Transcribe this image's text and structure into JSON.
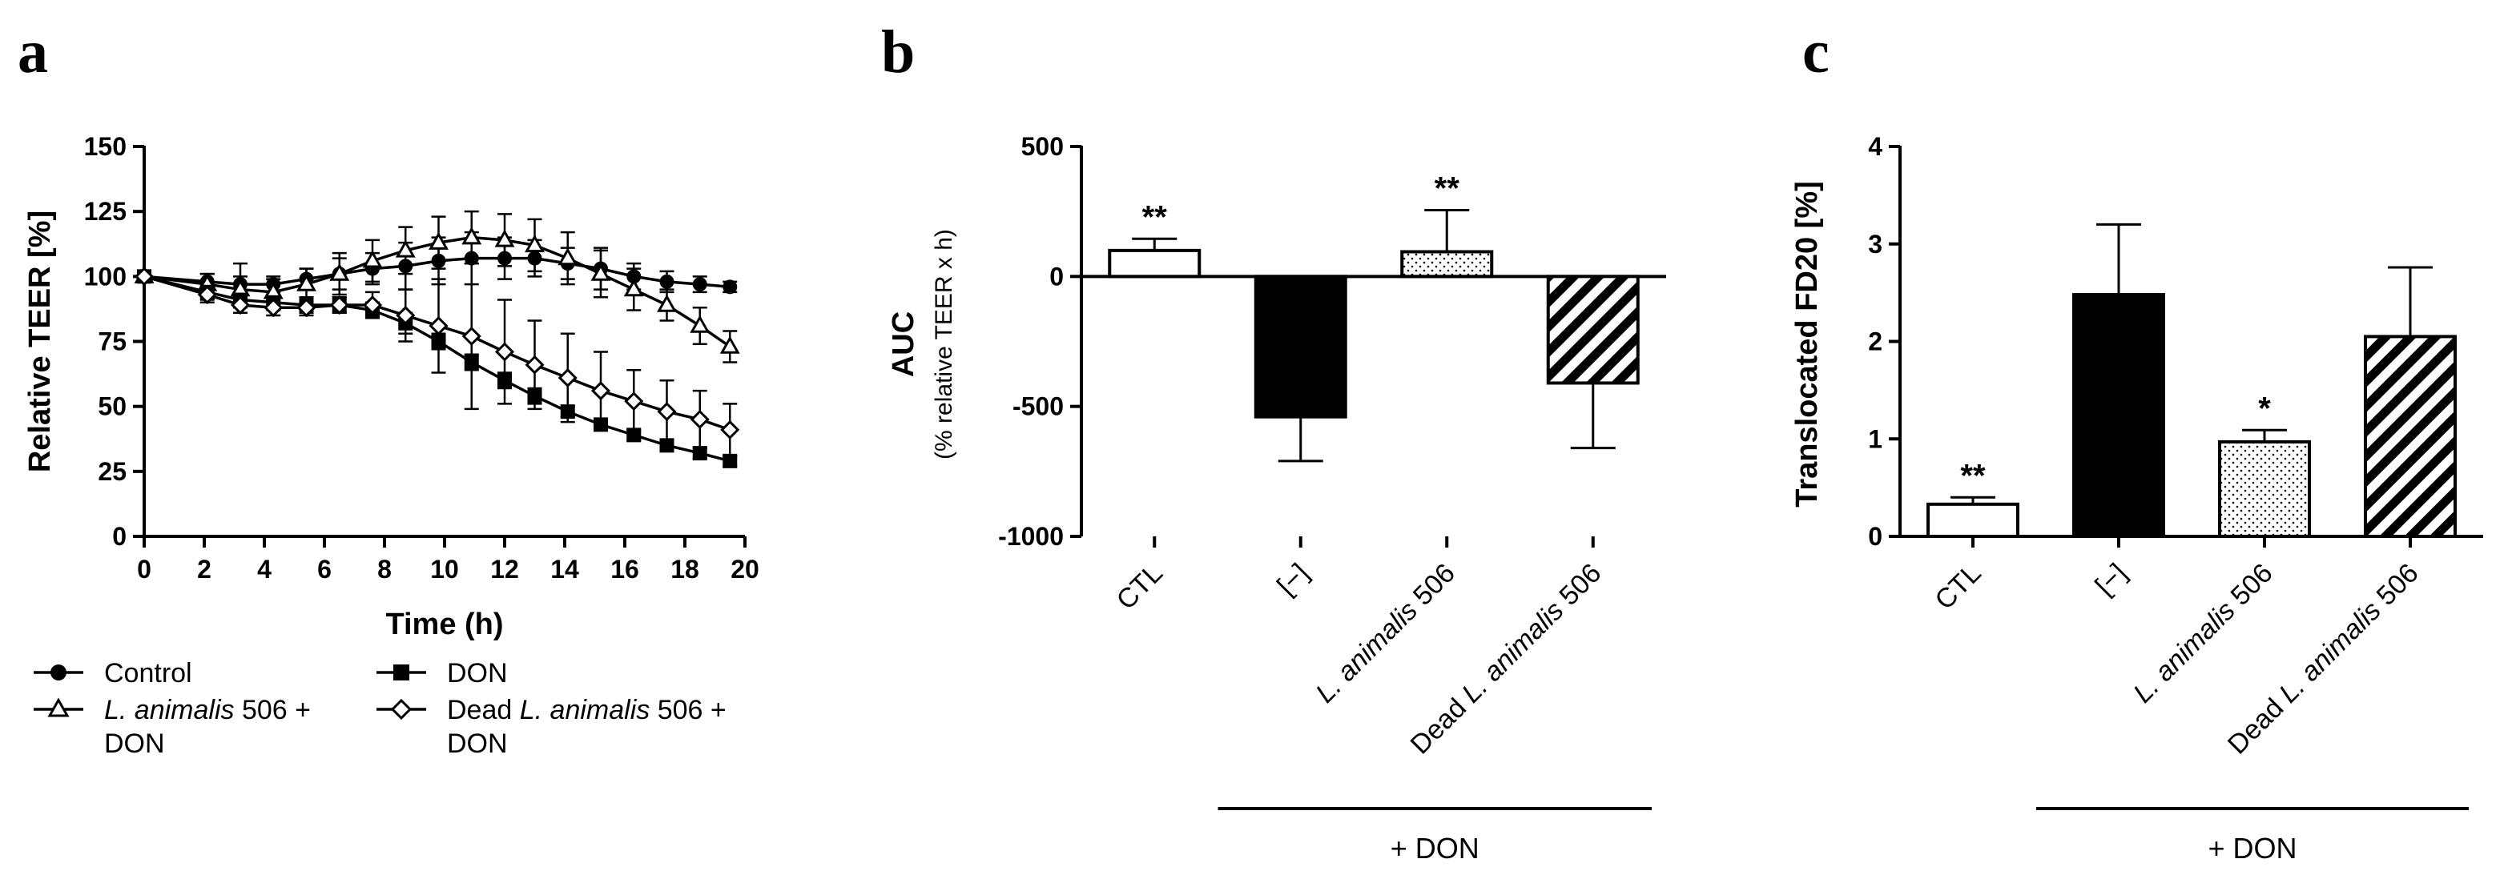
{
  "panels": {
    "a": "a",
    "b": "b",
    "c": "c"
  },
  "chart_data": [
    {
      "type": "line",
      "panel": "a",
      "title": "",
      "xlabel": "Time (h)",
      "ylabel": "Relative TEER [%]",
      "xlim": [
        0,
        20
      ],
      "ylim": [
        0,
        150
      ],
      "x_ticks": [
        "0",
        "2",
        "4",
        "6",
        "8",
        "10",
        "12",
        "14",
        "16",
        "18",
        "20"
      ],
      "y_ticks": [
        "0",
        "25",
        "50",
        "75",
        "100",
        "125",
        "150"
      ],
      "legend_position": "bottom",
      "series": [
        {
          "name": "Control",
          "marker": "filled-circle",
          "x": [
            0,
            2.1,
            3.2,
            4.3,
            5.4,
            6.5,
            7.6,
            8.7,
            9.8,
            10.9,
            12.0,
            13.0,
            14.1,
            15.2,
            16.3,
            17.4,
            18.5,
            19.5
          ],
          "y": [
            100,
            98,
            97,
            97,
            99,
            101,
            103,
            104,
            106,
            107,
            107,
            107,
            105,
            103,
            100,
            98,
            97,
            96
          ],
          "err": [
            0,
            3,
            8,
            3,
            4,
            6,
            6,
            9,
            9,
            10,
            8,
            7,
            6,
            8,
            5,
            4,
            3,
            2
          ]
        },
        {
          "name": "L. animalis 506 + DON",
          "marker": "open-triangle",
          "x": [
            0,
            2.1,
            3.2,
            4.3,
            5.4,
            6.5,
            7.6,
            8.7,
            9.8,
            10.9,
            12.0,
            13.0,
            14.1,
            15.2,
            16.3,
            17.4,
            18.5,
            19.5
          ],
          "y": [
            100,
            97,
            95,
            94,
            97,
            101,
            106,
            110,
            113,
            115,
            114,
            112,
            107,
            101,
            95,
            89,
            81,
            73
          ],
          "err": [
            0,
            4,
            5,
            5,
            6,
            8,
            8,
            9,
            10,
            10,
            10,
            10,
            10,
            9,
            8,
            6,
            7,
            6
          ]
        },
        {
          "name": "DON",
          "marker": "filled-square",
          "x": [
            0,
            2.1,
            3.2,
            4.3,
            5.4,
            6.5,
            7.6,
            8.7,
            9.8,
            10.9,
            12.0,
            13.0,
            14.1,
            15.2,
            16.3,
            17.4,
            18.5,
            19.5
          ],
          "y": [
            100,
            94,
            91,
            90,
            89,
            89,
            87,
            82,
            75,
            67,
            60,
            54,
            48,
            43,
            39,
            35,
            32,
            29
          ],
          "err": [
            0,
            3,
            3,
            3,
            3,
            3,
            3,
            4,
            3,
            3,
            3,
            3,
            2,
            2,
            2,
            2,
            2,
            2
          ]
        },
        {
          "name": "Dead L. animalis 506 + DON",
          "marker": "open-diamond",
          "x": [
            0,
            2.1,
            3.2,
            4.3,
            5.4,
            6.5,
            7.6,
            8.7,
            9.8,
            10.9,
            12.0,
            13.0,
            14.1,
            15.2,
            16.3,
            17.4,
            18.5,
            19.5
          ],
          "y": [
            100,
            93,
            89,
            88,
            88,
            89,
            89,
            85,
            81,
            77,
            71,
            66,
            61,
            56,
            52,
            48,
            45,
            41
          ],
          "err": [
            0,
            3,
            3,
            3,
            3,
            3,
            5,
            10,
            18,
            28,
            20,
            17,
            17,
            15,
            12,
            12,
            11,
            10
          ]
        }
      ]
    },
    {
      "type": "bar",
      "panel": "b",
      "title": "",
      "xlabel": "",
      "ylabel": "AUC",
      "ylabel_sub": "(% relative TEER x h)",
      "ylim": [
        -1000,
        500
      ],
      "y_ticks": [
        "500",
        "0",
        "-500",
        "-1000"
      ],
      "categories": [
        "CTL",
        "[−]",
        "L. animalis 506",
        "Dead L. animalis 506"
      ],
      "values": [
        100,
        -540,
        95,
        -410
      ],
      "errors": [
        45,
        170,
        160,
        250
      ],
      "significance": [
        "**",
        "",
        "**",
        ""
      ],
      "fills": [
        "white",
        "black",
        "dotted",
        "hatched"
      ],
      "group_label": "+ DON"
    },
    {
      "type": "bar",
      "panel": "c",
      "title": "",
      "xlabel": "",
      "ylabel": "Translocated FD20 [%]",
      "ylim": [
        0,
        4
      ],
      "y_ticks": [
        "0",
        "1",
        "2",
        "3",
        "4"
      ],
      "categories": [
        "CTL",
        "[−]",
        "L. animalis 506",
        "Dead L. animalis 506"
      ],
      "values": [
        0.33,
        2.48,
        0.97,
        2.05
      ],
      "errors": [
        0.07,
        0.72,
        0.12,
        0.71
      ],
      "significance": [
        "**",
        "",
        "*",
        ""
      ],
      "fills": [
        "white",
        "black",
        "dotted",
        "hatched"
      ],
      "group_label": "+ DON"
    }
  ]
}
